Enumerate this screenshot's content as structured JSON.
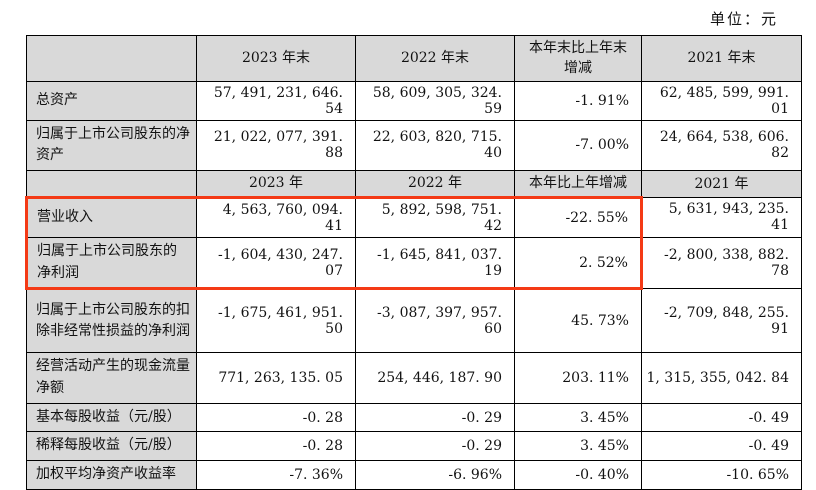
{
  "unit_label": "单位：元",
  "annotation": {
    "highlight_color": "#f43a16",
    "highlighted_rows": "营业收入、归属于上市公司股东的净利润",
    "highlight_span_columns": "指标名称至本年比上年增减"
  },
  "colors": {
    "header_bg": "#d9d9d9",
    "border": "#000000",
    "text": "#121212",
    "page_bg": "#ffffff"
  },
  "table": {
    "header1": {
      "c0": "",
      "c1": "2023 年末",
      "c2": "2022 年末",
      "c3": "本年末比上年末增减",
      "c4": "2021 年末"
    },
    "header2": {
      "c0": "",
      "c1": "2023 年",
      "c2": "2022 年",
      "c3": "本年比上年增减",
      "c4": "2021 年"
    },
    "rows": [
      {
        "label": "总资产",
        "v1": "57, 491, 231, 646. 54",
        "v2": "58, 609, 305, 324. 59",
        "v3": "-1. 91%",
        "v4": "62, 485, 599, 991. 01"
      },
      {
        "label": "归属于上市公司股东的净资产",
        "v1": "21, 022, 077, 391. 88",
        "v2": "22, 603, 820, 715. 40",
        "v3": "-7. 00%",
        "v4": "24, 664, 538, 606. 82"
      },
      {
        "label": "营业收入",
        "v1": "4, 563, 760, 094. 41",
        "v2": "5, 892, 598, 751. 42",
        "v3": "-22. 55%",
        "v4": "5, 631, 943, 235. 41"
      },
      {
        "label": "归属于上市公司股东的净利润",
        "v1": "-1, 604, 430, 247. 07",
        "v2": "-1, 645, 841, 037. 19",
        "v3": "2. 52%",
        "v4": "-2, 800, 338, 882. 78"
      },
      {
        "label": "归属于上市公司股东的扣除非经常性损益的净利润",
        "v1": "-1, 675, 461, 951. 50",
        "v2": "-3, 087, 397, 957. 60",
        "v3": "45. 73%",
        "v4": "-2, 709, 848, 255. 91"
      },
      {
        "label": "经营活动产生的现金流量净额",
        "v1": "771, 263, 135. 05",
        "v2": "254, 446, 187. 90",
        "v3": "203. 11%",
        "v4": "1, 315, 355, 042. 84"
      },
      {
        "label": "基本每股收益（元/股）",
        "v1": "-0. 28",
        "v2": "-0. 29",
        "v3": "3. 45%",
        "v4": "-0. 49"
      },
      {
        "label": "稀释每股收益（元/股）",
        "v1": "-0. 28",
        "v2": "-0. 29",
        "v3": "3. 45%",
        "v4": "-0. 49"
      },
      {
        "label": "加权平均净资产收益率",
        "v1": "-7. 36%",
        "v2": "-6. 96%",
        "v3": "-0. 40%",
        "v4": "-10. 65%"
      }
    ]
  }
}
